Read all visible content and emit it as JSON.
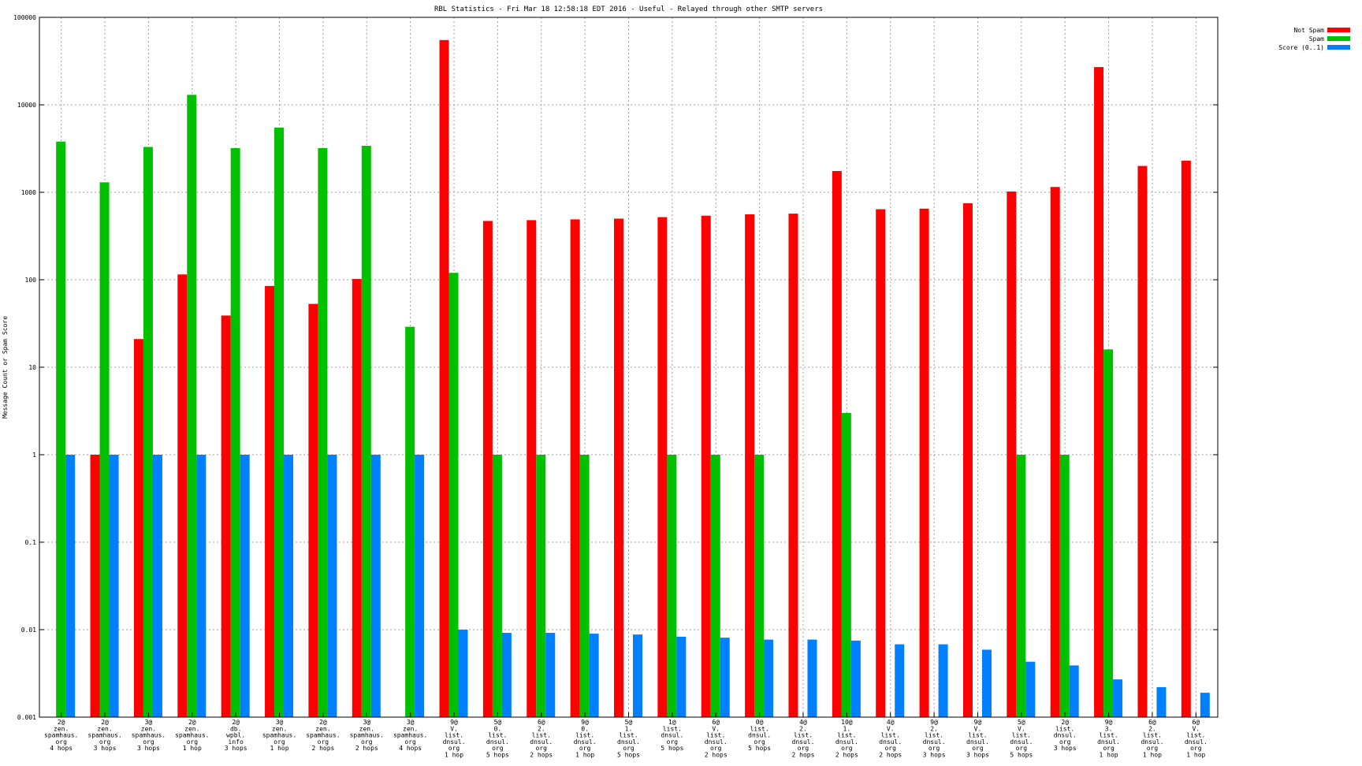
{
  "chart_data": {
    "type": "bar",
    "title": "RBL Statistics - Fri Mar 18 12:58:18 EDT 2016 - Useful - Relayed through other SMTP servers",
    "xlabel": "",
    "ylabel": "Message Count or Spam Score",
    "yscale": "log",
    "ylim": [
      0.001,
      100000
    ],
    "yticks": [
      "100000",
      "10000",
      "1000",
      "100",
      "10",
      "1",
      "0.1",
      "0.01",
      "0.001"
    ],
    "grid": true,
    "legend_position": "top-right",
    "categories": [
      [
        "2@",
        "zen.",
        "spamhaus.",
        "org",
        "4 hops"
      ],
      [
        "2@",
        "zen.",
        "spamhaus.",
        "org",
        "3 hops"
      ],
      [
        "3@",
        "zen.",
        "spamhaus.",
        "org",
        "3 hops"
      ],
      [
        "2@",
        "zen.",
        "spamhaus.",
        "org",
        "1 hop"
      ],
      [
        "2@",
        "db.",
        "wpbl.",
        "info",
        "3 hops"
      ],
      [
        "3@",
        "zen.",
        "spamhaus.",
        "org",
        "1 hop"
      ],
      [
        "2@",
        "zen.",
        "spamhaus.",
        "org",
        "2 hops"
      ],
      [
        "3@",
        "zen.",
        "spamhaus.",
        "org",
        "2 hops"
      ],
      [
        "3@",
        "zen.",
        "spamhaus.",
        "org",
        "4 hops"
      ],
      [
        "9@",
        "V.",
        "list.",
        "dnsul.",
        "org",
        "1 hop"
      ],
      [
        "5@",
        "0.",
        "list.",
        "dnsul.",
        "org",
        "5 hops"
      ],
      [
        "6@",
        "2.",
        "list.",
        "dnsul.",
        "org",
        "2 hops"
      ],
      [
        "9@",
        "0.",
        "list.",
        "dnsul.",
        "org",
        "1 hop"
      ],
      [
        "5@",
        "1.",
        "list.",
        "dnsul.",
        "org",
        "5 hops"
      ],
      [
        "1@",
        "list.",
        "dnsul.",
        "org",
        "5 hops"
      ],
      [
        "6@",
        "V.",
        "list.",
        "dnsul.",
        "org",
        "2 hops"
      ],
      [
        "0@",
        "list.",
        "dnsul.",
        "org",
        "5 hops"
      ],
      [
        "4@",
        "2.",
        "list.",
        "dnsul.",
        "org",
        "2 hops"
      ],
      [
        "10@",
        "1.",
        "list.",
        "dnsul.",
        "org",
        "2 hops"
      ],
      [
        "4@",
        "V.",
        "list.",
        "dnsul.",
        "org",
        "2 hops"
      ],
      [
        "9@",
        "2.",
        "list.",
        "dnsul.",
        "org",
        "3 hops"
      ],
      [
        "9@",
        "V.",
        "list.",
        "dnsul.",
        "org",
        "3 hops"
      ],
      [
        "5@",
        "V.",
        "list.",
        "dnsul.",
        "org",
        "5 hops"
      ],
      [
        "2@",
        "list.",
        "dnsul.",
        "org",
        "3 hops"
      ],
      [
        "9@",
        "3.",
        "list.",
        "dnsul.",
        "org",
        "1 hop"
      ],
      [
        "6@",
        "2.",
        "list.",
        "dnsul.",
        "org",
        "1 hop"
      ],
      [
        "6@",
        "V.",
        "list.",
        "dnsul.",
        "org",
        "1 hop"
      ]
    ],
    "series": [
      {
        "name": "Not Spam",
        "color": "#ff0000",
        "values": [
          null,
          1,
          21,
          115,
          39,
          85,
          53,
          102,
          null,
          55000,
          470,
          480,
          490,
          500,
          520,
          540,
          560,
          570,
          1750,
          640,
          650,
          750,
          1020,
          1150,
          27000,
          2000,
          2300
        ]
      },
      {
        "name": "Spam",
        "color": "#00c000",
        "values": [
          3800,
          1300,
          3300,
          13000,
          3200,
          5500,
          3200,
          3400,
          29,
          120,
          1,
          1,
          1,
          null,
          1,
          1,
          1,
          null,
          3,
          null,
          null,
          null,
          1,
          1,
          16,
          null,
          null
        ]
      },
      {
        "name": "Score (0..1)",
        "color": "#0080ff",
        "values": [
          1,
          1,
          1,
          1,
          1,
          1,
          1,
          1,
          1,
          0.01,
          0.0092,
          0.0092,
          0.009,
          0.0088,
          0.0083,
          0.0081,
          0.0077,
          0.0077,
          0.0075,
          0.0068,
          0.0068,
          0.0059,
          0.0043,
          0.0039,
          0.0027,
          0.0022,
          0.0019
        ]
      }
    ]
  }
}
